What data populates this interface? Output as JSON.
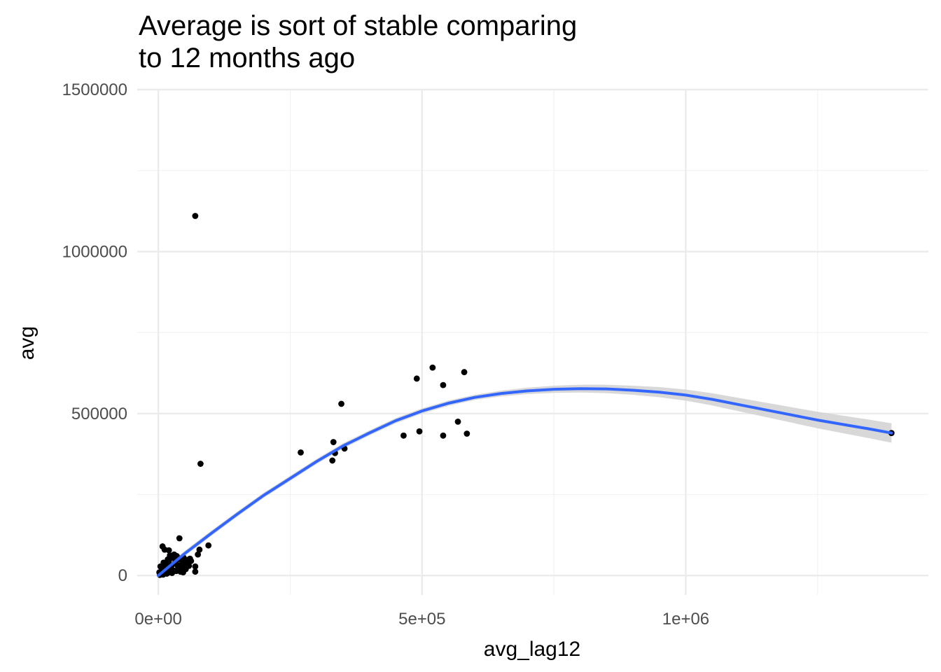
{
  "title_lines": [
    "Average is sort of stable comparing",
    "to 12 months ago"
  ],
  "chart_data": {
    "type": "scatter",
    "title": "Average is sort of stable comparing to 12 months ago",
    "xlabel": "avg_lag12",
    "ylabel": "avg",
    "xlim": [
      -40000,
      1460000
    ],
    "ylim": [
      -60000,
      1500000
    ],
    "x_ticks": [
      {
        "value": 0,
        "label": "0e+00"
      },
      {
        "value": 500000,
        "label": "5e+05"
      },
      {
        "value": 1000000,
        "label": "1e+06"
      }
    ],
    "x_minor_ticks": [
      250000,
      750000,
      1250000
    ],
    "y_ticks": [
      {
        "value": 0,
        "label": "0"
      },
      {
        "value": 500000,
        "label": "500000"
      },
      {
        "value": 1000000,
        "label": "1000000"
      },
      {
        "value": 1500000,
        "label": "1500000"
      }
    ],
    "y_minor_ticks": [
      250000,
      750000,
      1250000
    ],
    "grid": true,
    "points": [
      [
        70000,
        1110000
      ],
      [
        80000,
        345000
      ],
      [
        270000,
        380000
      ],
      [
        330000,
        355000
      ],
      [
        332000,
        412000
      ],
      [
        335000,
        378000
      ],
      [
        347000,
        530000
      ],
      [
        353000,
        392000
      ],
      [
        465000,
        432000
      ],
      [
        490000,
        608000
      ],
      [
        495000,
        445000
      ],
      [
        520000,
        642000
      ],
      [
        540000,
        588000
      ],
      [
        540000,
        432000
      ],
      [
        568000,
        475000
      ],
      [
        580000,
        628000
      ],
      [
        585000,
        438000
      ],
      [
        1390000,
        440000
      ],
      [
        40000,
        115000
      ],
      [
        95000,
        93000
      ],
      [
        78000,
        80000
      ],
      [
        75000,
        65000
      ],
      [
        70000,
        28000
      ],
      [
        70000,
        12000
      ],
      [
        8000,
        90000
      ],
      [
        12000,
        80000
      ],
      [
        20000,
        78000
      ],
      [
        5000,
        5000
      ],
      [
        8000,
        15000
      ],
      [
        10000,
        25000
      ],
      [
        12000,
        8000
      ],
      [
        15000,
        35000
      ],
      [
        18000,
        20000
      ],
      [
        20000,
        45000
      ],
      [
        22000,
        10000
      ],
      [
        25000,
        30000
      ],
      [
        28000,
        55000
      ],
      [
        30000,
        15000
      ],
      [
        32000,
        40000
      ],
      [
        35000,
        60000
      ],
      [
        38000,
        25000
      ],
      [
        40000,
        50000
      ],
      [
        42000,
        12000
      ],
      [
        45000,
        35000
      ],
      [
        48000,
        55000
      ],
      [
        50000,
        42000
      ],
      [
        52000,
        20000
      ],
      [
        55000,
        48000
      ],
      [
        58000,
        30000
      ],
      [
        60000,
        52000
      ],
      [
        3000,
        2000
      ],
      [
        6000,
        12000
      ],
      [
        9000,
        3000
      ],
      [
        14000,
        18000
      ],
      [
        16000,
        6000
      ],
      [
        24000,
        22000
      ],
      [
        26000,
        8000
      ],
      [
        34000,
        14000
      ],
      [
        36000,
        32000
      ],
      [
        44000,
        22000
      ],
      [
        47000,
        10000
      ],
      [
        53000,
        28000
      ],
      [
        57000,
        38000
      ],
      [
        62000,
        45000
      ],
      [
        30000,
        65000
      ],
      [
        22000,
        62000
      ],
      [
        18000,
        50000
      ],
      [
        10000,
        40000
      ],
      [
        4000,
        28000
      ],
      [
        2000,
        10000
      ]
    ],
    "smooth": [
      [
        0,
        0
      ],
      [
        50000,
        68000
      ],
      [
        100000,
        130000
      ],
      [
        150000,
        190000
      ],
      [
        200000,
        248000
      ],
      [
        250000,
        300000
      ],
      [
        300000,
        352000
      ],
      [
        350000,
        400000
      ],
      [
        400000,
        440000
      ],
      [
        450000,
        478000
      ],
      [
        500000,
        508000
      ],
      [
        550000,
        532000
      ],
      [
        600000,
        550000
      ],
      [
        650000,
        562000
      ],
      [
        700000,
        570000
      ],
      [
        750000,
        575000
      ],
      [
        800000,
        577000
      ],
      [
        850000,
        576000
      ],
      [
        900000,
        572000
      ],
      [
        950000,
        566000
      ],
      [
        1000000,
        557000
      ],
      [
        1050000,
        544000
      ],
      [
        1100000,
        528000
      ],
      [
        1150000,
        512000
      ],
      [
        1200000,
        496000
      ],
      [
        1250000,
        480000
      ],
      [
        1300000,
        466000
      ],
      [
        1350000,
        452000
      ],
      [
        1390000,
        440000
      ]
    ],
    "colors": {
      "points": "#000000",
      "smooth_line": "#3366ff",
      "ribbon": "#d4d4d4",
      "grid": "#ebebeb",
      "grid_minor": "#f2f2f2"
    }
  }
}
